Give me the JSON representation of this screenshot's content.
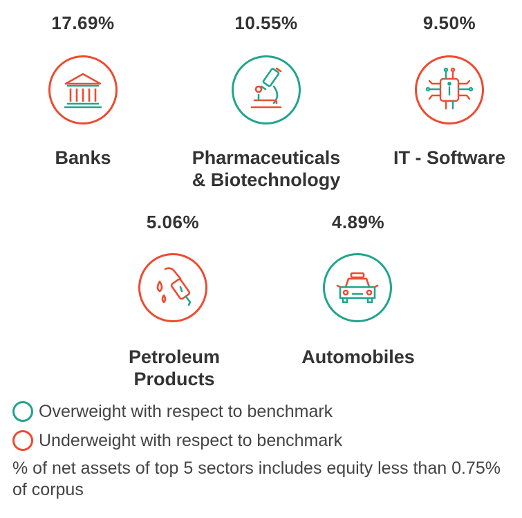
{
  "colors": {
    "overweight": "#1fa58c",
    "underweight": "#ef4a2f"
  },
  "sectors": [
    {
      "name_line1": "Banks",
      "name_line2": "",
      "percent": "17.69%",
      "weight": "underweight",
      "icon": "bank-icon"
    },
    {
      "name_line1": "Pharmaceuticals",
      "name_line2": "& Biotechnology",
      "percent": "10.55%",
      "weight": "overweight",
      "icon": "microscope-icon"
    },
    {
      "name_line1": "IT - Software",
      "name_line2": "",
      "percent": "9.50%",
      "weight": "underweight",
      "icon": "chip-icon"
    },
    {
      "name_line1": "Petroleum",
      "name_line2": "Products",
      "percent": "5.06%",
      "weight": "underweight",
      "icon": "fuel-nozzle-icon"
    },
    {
      "name_line1": "Automobiles",
      "name_line2": "",
      "percent": "4.89%",
      "weight": "overweight",
      "icon": "car-icon"
    }
  ],
  "legend": {
    "overweight": "Overweight with respect to benchmark",
    "underweight": "Underweight with respect to benchmark"
  },
  "note": "% of net assets of top 5 sectors includes equity less than 0.75% of corpus"
}
